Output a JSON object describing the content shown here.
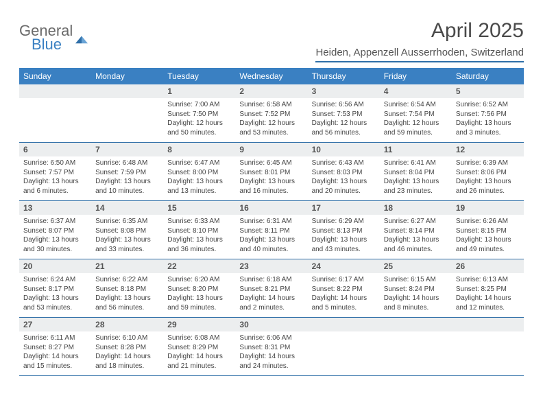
{
  "logo": {
    "textGray": "General",
    "textBlue": "Blue"
  },
  "header": {
    "monthTitle": "April 2025",
    "location": "Heiden, Appenzell Ausserrhoden, Switzerland"
  },
  "colors": {
    "headerBar": "#3a80c2",
    "dayNumBg": "#eceeef",
    "ruleLine": "#2f6fa8",
    "background": "#ffffff"
  },
  "calendar": {
    "dayNames": [
      "Sunday",
      "Monday",
      "Tuesday",
      "Wednesday",
      "Thursday",
      "Friday",
      "Saturday"
    ],
    "weeks": [
      [
        null,
        null,
        {
          "n": "1",
          "sunrise": "7:00 AM",
          "sunset": "7:50 PM",
          "daylight": "12 hours and 50 minutes."
        },
        {
          "n": "2",
          "sunrise": "6:58 AM",
          "sunset": "7:52 PM",
          "daylight": "12 hours and 53 minutes."
        },
        {
          "n": "3",
          "sunrise": "6:56 AM",
          "sunset": "7:53 PM",
          "daylight": "12 hours and 56 minutes."
        },
        {
          "n": "4",
          "sunrise": "6:54 AM",
          "sunset": "7:54 PM",
          "daylight": "12 hours and 59 minutes."
        },
        {
          "n": "5",
          "sunrise": "6:52 AM",
          "sunset": "7:56 PM",
          "daylight": "13 hours and 3 minutes."
        }
      ],
      [
        {
          "n": "6",
          "sunrise": "6:50 AM",
          "sunset": "7:57 PM",
          "daylight": "13 hours and 6 minutes."
        },
        {
          "n": "7",
          "sunrise": "6:48 AM",
          "sunset": "7:59 PM",
          "daylight": "13 hours and 10 minutes."
        },
        {
          "n": "8",
          "sunrise": "6:47 AM",
          "sunset": "8:00 PM",
          "daylight": "13 hours and 13 minutes."
        },
        {
          "n": "9",
          "sunrise": "6:45 AM",
          "sunset": "8:01 PM",
          "daylight": "13 hours and 16 minutes."
        },
        {
          "n": "10",
          "sunrise": "6:43 AM",
          "sunset": "8:03 PM",
          "daylight": "13 hours and 20 minutes."
        },
        {
          "n": "11",
          "sunrise": "6:41 AM",
          "sunset": "8:04 PM",
          "daylight": "13 hours and 23 minutes."
        },
        {
          "n": "12",
          "sunrise": "6:39 AM",
          "sunset": "8:06 PM",
          "daylight": "13 hours and 26 minutes."
        }
      ],
      [
        {
          "n": "13",
          "sunrise": "6:37 AM",
          "sunset": "8:07 PM",
          "daylight": "13 hours and 30 minutes."
        },
        {
          "n": "14",
          "sunrise": "6:35 AM",
          "sunset": "8:08 PM",
          "daylight": "13 hours and 33 minutes."
        },
        {
          "n": "15",
          "sunrise": "6:33 AM",
          "sunset": "8:10 PM",
          "daylight": "13 hours and 36 minutes."
        },
        {
          "n": "16",
          "sunrise": "6:31 AM",
          "sunset": "8:11 PM",
          "daylight": "13 hours and 40 minutes."
        },
        {
          "n": "17",
          "sunrise": "6:29 AM",
          "sunset": "8:13 PM",
          "daylight": "13 hours and 43 minutes."
        },
        {
          "n": "18",
          "sunrise": "6:27 AM",
          "sunset": "8:14 PM",
          "daylight": "13 hours and 46 minutes."
        },
        {
          "n": "19",
          "sunrise": "6:26 AM",
          "sunset": "8:15 PM",
          "daylight": "13 hours and 49 minutes."
        }
      ],
      [
        {
          "n": "20",
          "sunrise": "6:24 AM",
          "sunset": "8:17 PM",
          "daylight": "13 hours and 53 minutes."
        },
        {
          "n": "21",
          "sunrise": "6:22 AM",
          "sunset": "8:18 PM",
          "daylight": "13 hours and 56 minutes."
        },
        {
          "n": "22",
          "sunrise": "6:20 AM",
          "sunset": "8:20 PM",
          "daylight": "13 hours and 59 minutes."
        },
        {
          "n": "23",
          "sunrise": "6:18 AM",
          "sunset": "8:21 PM",
          "daylight": "14 hours and 2 minutes."
        },
        {
          "n": "24",
          "sunrise": "6:17 AM",
          "sunset": "8:22 PM",
          "daylight": "14 hours and 5 minutes."
        },
        {
          "n": "25",
          "sunrise": "6:15 AM",
          "sunset": "8:24 PM",
          "daylight": "14 hours and 8 minutes."
        },
        {
          "n": "26",
          "sunrise": "6:13 AM",
          "sunset": "8:25 PM",
          "daylight": "14 hours and 12 minutes."
        }
      ],
      [
        {
          "n": "27",
          "sunrise": "6:11 AM",
          "sunset": "8:27 PM",
          "daylight": "14 hours and 15 minutes."
        },
        {
          "n": "28",
          "sunrise": "6:10 AM",
          "sunset": "8:28 PM",
          "daylight": "14 hours and 18 minutes."
        },
        {
          "n": "29",
          "sunrise": "6:08 AM",
          "sunset": "8:29 PM",
          "daylight": "14 hours and 21 minutes."
        },
        {
          "n": "30",
          "sunrise": "6:06 AM",
          "sunset": "8:31 PM",
          "daylight": "14 hours and 24 minutes."
        },
        null,
        null,
        null
      ]
    ]
  },
  "labels": {
    "sunrisePrefix": "Sunrise: ",
    "sunsetPrefix": "Sunset: ",
    "daylightPrefix": "Daylight: "
  }
}
